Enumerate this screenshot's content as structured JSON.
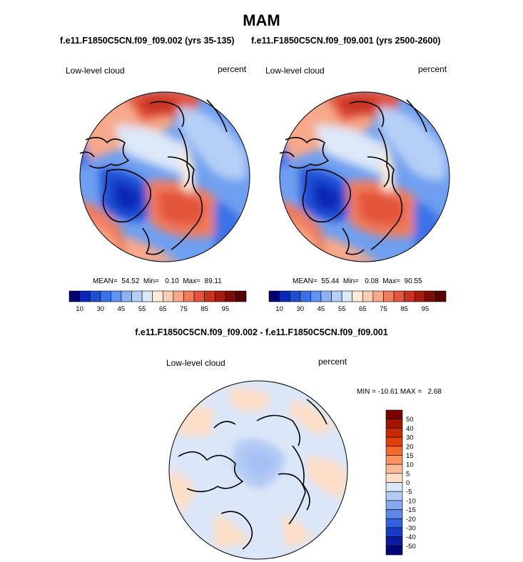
{
  "page": {
    "title": "MAM",
    "case_left": "f.e11.F1850C5CN.f09_f09.002 (yrs 35-135)",
    "case_right": "f.e11.F1850C5CN.f09_f09.001 (yrs 2500-2600)",
    "diff_title": "f.e11.F1850C5CN.f09_f09.002 - f.e11.F1850C5CN.f09_f09.001"
  },
  "chart_data": [
    {
      "type": "heatmap",
      "projection": "north-polar-stereographic",
      "variable_label": "Low-level cloud",
      "units_label": "percent",
      "stats": {
        "mean_label": "MEAN=",
        "mean": "54.52",
        "min_label": "Min=",
        "min": "0.10",
        "max_label": "Max=",
        "max": "89.11"
      },
      "colorbar": {
        "orientation": "horizontal",
        "levels": [
          5,
          10,
          20,
          30,
          40,
          45,
          50,
          55,
          60,
          65,
          70,
          75,
          80,
          85,
          90,
          95
        ],
        "tick_labels": [
          "10",
          "30",
          "45",
          "55",
          "65",
          "75",
          "85",
          "95"
        ],
        "colors": [
          "#05006f",
          "#0a27b5",
          "#1f4fd6",
          "#3a72e6",
          "#5f93ef",
          "#8bb2f4",
          "#b6cff6",
          "#dde8f8",
          "#fdebd9",
          "#fbcdb2",
          "#f7a98a",
          "#f07d5e",
          "#e3543a",
          "#c93220",
          "#a41b10",
          "#7c0c06",
          "#570303"
        ]
      }
    },
    {
      "type": "heatmap",
      "projection": "north-polar-stereographic",
      "variable_label": "Low-level cloud",
      "units_label": "percent",
      "stats": {
        "mean_label": "MEAN=",
        "mean": "55.44",
        "min_label": "Min=",
        "min": "0.08",
        "max_label": "Max=",
        "max": "90.55"
      },
      "colorbar": {
        "orientation": "horizontal",
        "levels": [
          5,
          10,
          20,
          30,
          40,
          45,
          50,
          55,
          60,
          65,
          70,
          75,
          80,
          85,
          90,
          95
        ],
        "tick_labels": [
          "10",
          "30",
          "45",
          "55",
          "65",
          "75",
          "85",
          "95"
        ],
        "colors": [
          "#05006f",
          "#0a27b5",
          "#1f4fd6",
          "#3a72e6",
          "#5f93ef",
          "#8bb2f4",
          "#b6cff6",
          "#dde8f8",
          "#fdebd9",
          "#fbcdb2",
          "#f7a98a",
          "#f07d5e",
          "#e3543a",
          "#c93220",
          "#a41b10",
          "#7c0c06",
          "#570303"
        ]
      }
    },
    {
      "type": "heatmap",
      "projection": "north-polar-stereographic",
      "variable_label": "Low-level cloud",
      "units_label": "percent",
      "stats": {
        "min_label": "MIN =",
        "min": "-10.61",
        "max_label": "MAX =",
        "max": "2.68"
      },
      "colorbar": {
        "orientation": "vertical",
        "levels": [
          -50,
          -40,
          -30,
          -20,
          -15,
          -10,
          -5,
          0,
          5,
          10,
          15,
          20,
          30,
          40,
          50
        ],
        "tick_labels": [
          "50",
          "40",
          "30",
          "20",
          "15",
          "10",
          "5",
          "0",
          "-5",
          "-10",
          "-15",
          "-20",
          "-30",
          "-40",
          "-50"
        ],
        "colors": [
          "#7d0000",
          "#a51400",
          "#c82700",
          "#e43f0b",
          "#f5672f",
          "#f99362",
          "#fcbb98",
          "#fddfc9",
          "#dbe6f8",
          "#b3caf5",
          "#87a8f0",
          "#5c86e8",
          "#3460dd",
          "#1939c7",
          "#0a1ba0",
          "#020578"
        ]
      }
    }
  ]
}
